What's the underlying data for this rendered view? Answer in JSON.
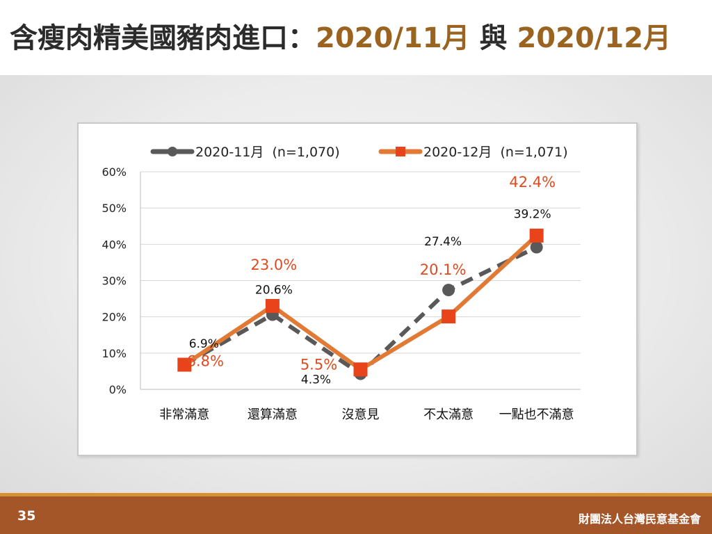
{
  "slide": {
    "title_main": "含瘦肉精美國豬肉進口：",
    "title_period1": "2020/11月",
    "title_connector": " 與 ",
    "title_period2": "2020/12月",
    "page_number": "35",
    "organization": "財團法人台灣民意基金會"
  },
  "colors": {
    "title_text": "#2b2b2b",
    "title_accent": "#9a6420",
    "series_nov": "#595959",
    "series_dec": "#e07a35",
    "series_dec_marker": "#e8431a",
    "label_dec": "#e04a1f",
    "footer": "#a45628",
    "footer_accent": "#d9902e"
  },
  "chart_data": {
    "type": "line",
    "categories": [
      "非常滿意",
      "還算滿意",
      "沒意見",
      "不太滿意",
      "一點也不滿意"
    ],
    "ylim": [
      0,
      60
    ],
    "yticks": [
      "0%",
      "10%",
      "20%",
      "30%",
      "40%",
      "50%",
      "60%"
    ],
    "grid": true,
    "legend_position": "top",
    "series": [
      {
        "name": "2020-11月  (n=1,070)",
        "values": [
          6.9,
          20.6,
          4.3,
          27.4,
          39.2
        ],
        "labels": [
          "6.9%",
          "20.6%",
          "4.3%",
          "27.4%",
          "39.2%"
        ],
        "style": "dashed",
        "marker": "circle"
      },
      {
        "name": "2020-12月  (n=1,071)",
        "values": [
          6.8,
          23.0,
          5.5,
          20.1,
          42.4
        ],
        "labels": [
          "6.8%",
          "23.0%",
          "5.5%",
          "20.1%",
          "42.4%"
        ],
        "style": "solid",
        "marker": "square"
      }
    ]
  }
}
